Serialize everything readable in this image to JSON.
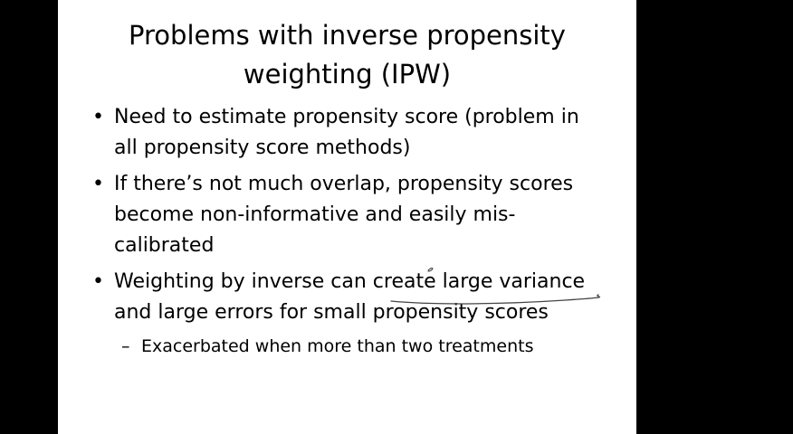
{
  "slide": {
    "title_lines": [
      "Problems with inverse propensity",
      "weighting (IPW)"
    ],
    "bullets": [
      {
        "lines": [
          "Need to estimate propensity score (problem in",
          "all propensity score methods)"
        ]
      },
      {
        "lines": [
          "If there’s not much overlap, propensity scores",
          "become non-informative and easily mis-",
          "calibrated"
        ]
      },
      {
        "lines": [
          "Weighting by inverse can create large variance",
          "and large errors for small propensity scores"
        ],
        "sub": "Exacerbated when more than two treatments"
      }
    ],
    "bullet_glyph": "•",
    "sub_glyph": "–"
  },
  "colors": {
    "background": "#000000",
    "slide": "#ffffff",
    "text": "#000000",
    "ink": "#444444"
  }
}
